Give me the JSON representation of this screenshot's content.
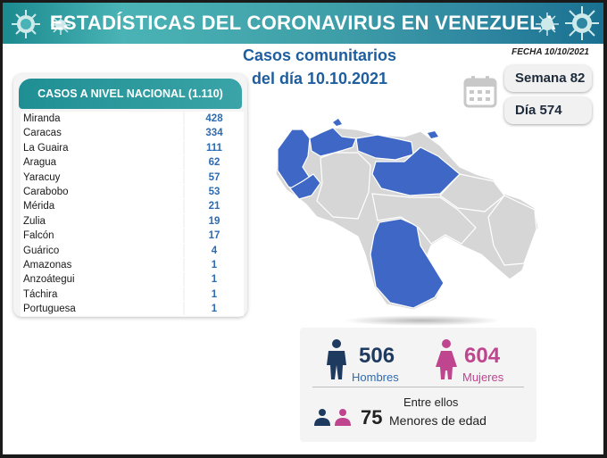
{
  "header": {
    "title": "ESTADÍSTICAS DEL CORONAVIRUS EN VENEZUELA"
  },
  "date": "FECHA 10/10/2021",
  "subtitle": {
    "line1": "Casos comunitarios",
    "line2": "del día 10.10.2021"
  },
  "week": "Semana 82",
  "day": "Día 574",
  "table": {
    "title": "CASOS A NIVEL NACIONAL (1.110)",
    "rows": [
      {
        "name": "Miranda",
        "value": "428"
      },
      {
        "name": "Caracas",
        "value": "334"
      },
      {
        "name": "La Guaira",
        "value": "111"
      },
      {
        "name": "Aragua",
        "value": "62"
      },
      {
        "name": "Yaracuy",
        "value": "57"
      },
      {
        "name": "Carabobo",
        "value": "53"
      },
      {
        "name": "Mérida",
        "value": "21"
      },
      {
        "name": "Zulia",
        "value": "19"
      },
      {
        "name": "Falcón",
        "value": "17"
      },
      {
        "name": "Guárico",
        "value": "4"
      },
      {
        "name": "Amazonas",
        "value": "1"
      },
      {
        "name": "Anzoátegui",
        "value": "1"
      },
      {
        "name": "Táchira",
        "value": "1"
      },
      {
        "name": "Portuguesa",
        "value": "1"
      }
    ]
  },
  "stats": {
    "men_count": "506",
    "men_label": "Hombres",
    "women_count": "604",
    "women_label": "Mujeres",
    "minors_intro": "Entre ellos",
    "minors_count": "75",
    "minors_label": "Menores de edad"
  },
  "colors": {
    "accent": "#2e6bb0",
    "teal": "#1f8f93",
    "men": "#1e3a5f",
    "women": "#c0458f",
    "map_highlight": "#3f68c6",
    "map_base": "#d6d6d6"
  },
  "icons": [
    "virus-icon",
    "calendar-icon",
    "man-icon",
    "woman-icon",
    "child-icons"
  ]
}
